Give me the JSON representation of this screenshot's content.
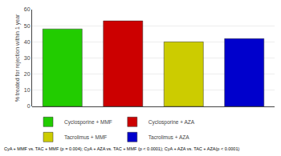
{
  "chart_data": {
    "type": "bar",
    "categories": [
      "Cyclosporine + MMF",
      "Cyclosporine + AZA",
      "Tacrolimus + MMF",
      "Tacrolimus + AZA"
    ],
    "values": [
      48,
      53,
      40,
      42
    ],
    "colors": [
      "#22cc00",
      "#cc0000",
      "#cccc00",
      "#0000cc"
    ],
    "ylabel": "% treated for rejection within 1 year",
    "ylim": [
      0,
      60
    ],
    "yticks": [
      0,
      10,
      20,
      30,
      40,
      50,
      60
    ],
    "grid": true,
    "legend": "bottom",
    "tick_labels": "y",
    "annotations": [
      "CyA + MMF vs. TAC + MMF (p = 0.004); CyA + AZA vs. TAC + MMF (p < 0.0001); CyA + AZA vs. TAC + AZA(p < 0.0001)"
    ]
  }
}
